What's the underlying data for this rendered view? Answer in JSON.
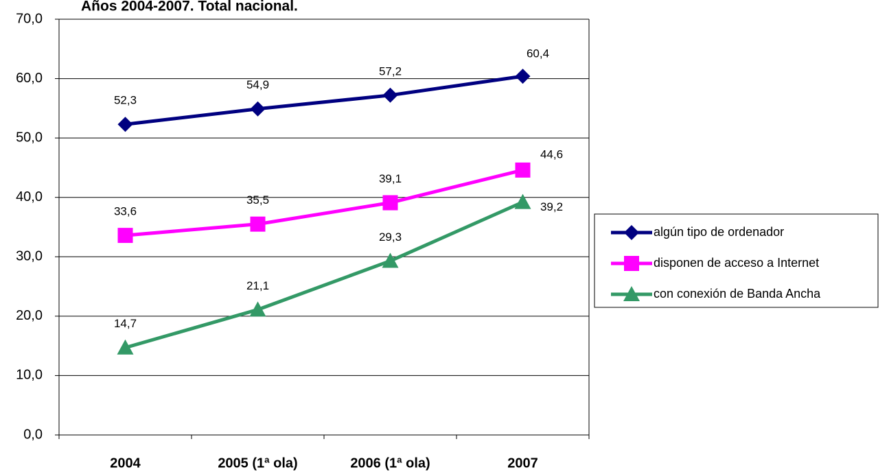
{
  "chart_data": {
    "type": "line",
    "title": "Años 2004-2007. Total nacional.",
    "categories": [
      "2004",
      "2005 (1ª ola)",
      "2006 (1ª ola)",
      "2007"
    ],
    "series": [
      {
        "name": "algún tipo de ordenador",
        "color": "#000080",
        "marker": "diamond",
        "values": [
          52.3,
          54.9,
          57.2,
          60.4
        ],
        "value_labels": [
          "52,3",
          "54,9",
          "57,2",
          "60,4"
        ]
      },
      {
        "name": "disponen de acceso a Internet",
        "color": "#ff00ff",
        "marker": "square",
        "values": [
          33.6,
          35.5,
          39.1,
          44.6
        ],
        "value_labels": [
          "33,6",
          "35,5",
          "39,1",
          "44,6"
        ]
      },
      {
        "name": "con conexión de Banda Ancha",
        "color": "#339966",
        "marker": "triangle",
        "values": [
          14.7,
          21.1,
          29.3,
          39.2
        ],
        "value_labels": [
          "14,7",
          "21,1",
          "29,3",
          "39,2"
        ]
      }
    ],
    "ylim": [
      0,
      70
    ],
    "yticks": [
      {
        "value": 0,
        "label": "0,0"
      },
      {
        "value": 10,
        "label": "10,0"
      },
      {
        "value": 20,
        "label": "20,0"
      },
      {
        "value": 30,
        "label": "30,0"
      },
      {
        "value": 40,
        "label": "40,0"
      },
      {
        "value": 50,
        "label": "50,0"
      },
      {
        "value": 60,
        "label": "60,0"
      },
      {
        "value": 70,
        "label": "70,0"
      }
    ],
    "grid": true,
    "legend": "right"
  }
}
